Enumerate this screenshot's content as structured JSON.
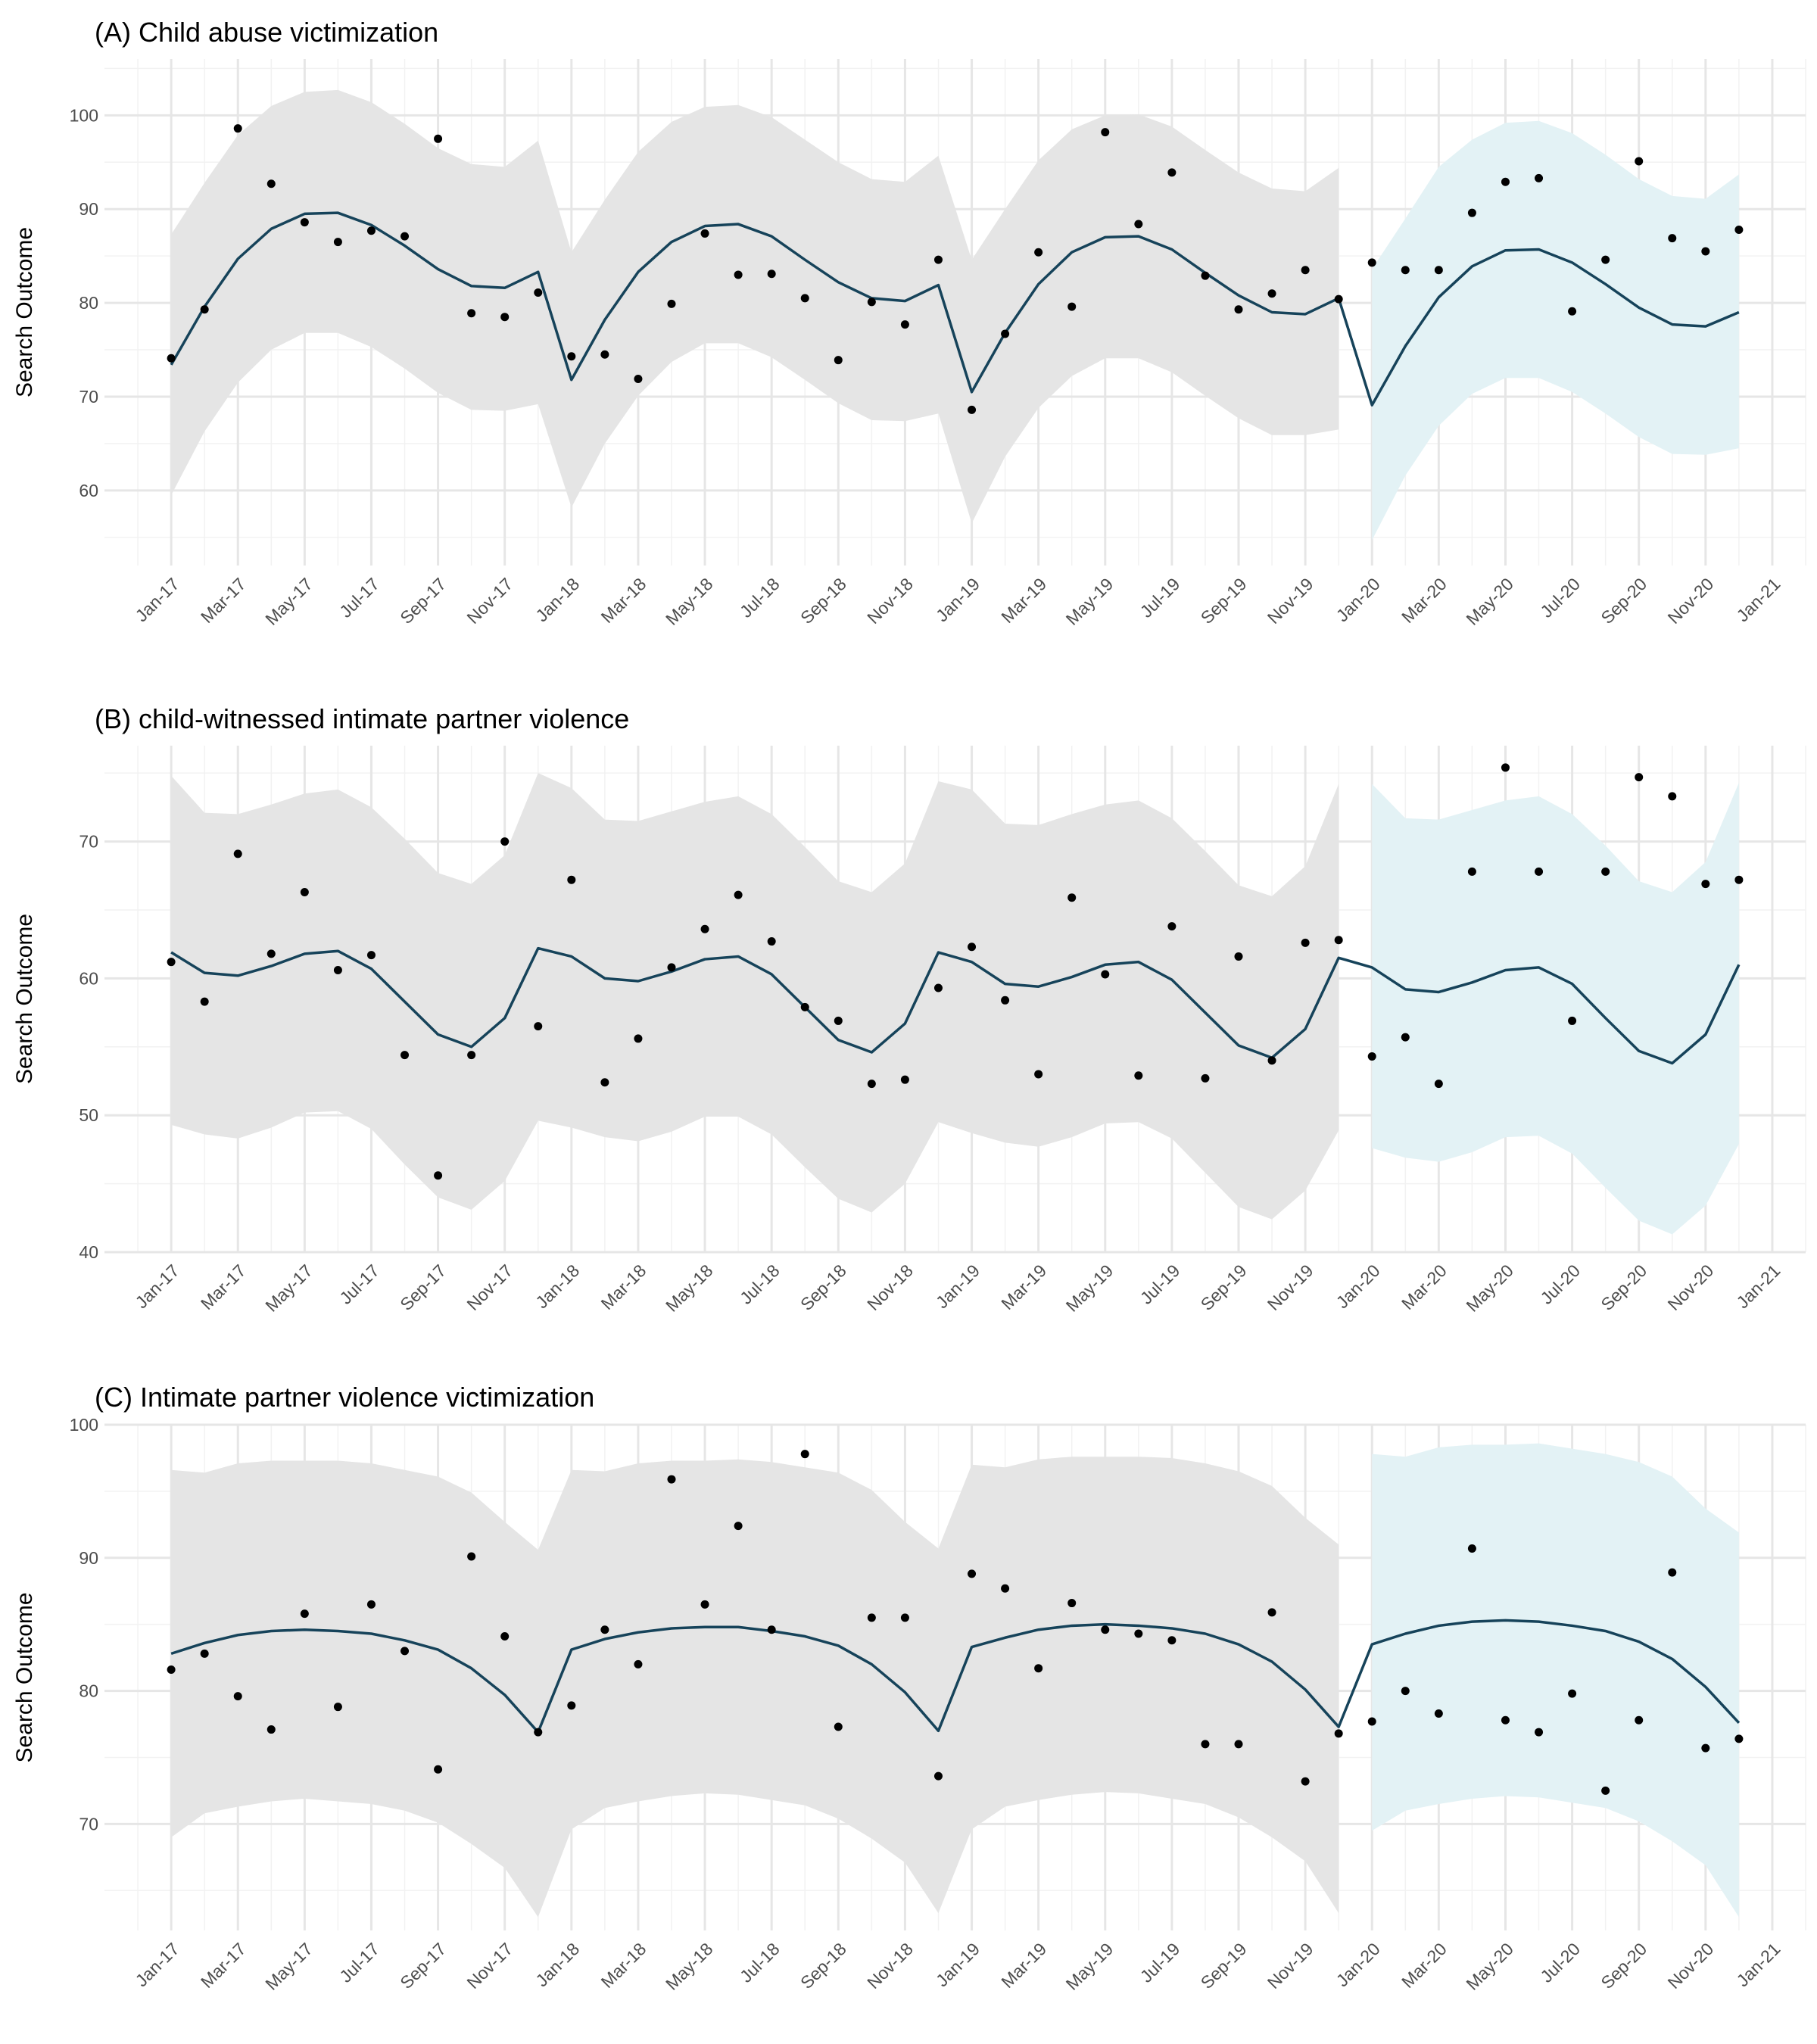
{
  "chart_data": [
    {
      "type": "line",
      "title": "(A) Child abuse victimization",
      "xlabel": "",
      "ylabel": "Search Outcome",
      "ylim": [
        52,
        106
      ],
      "yticks": [
        60,
        70,
        80,
        90,
        100
      ],
      "xlim": [
        "2016-11",
        "2021-02"
      ],
      "grid": true,
      "x": [
        "2017-01",
        "2017-02",
        "2017-03",
        "2017-04",
        "2017-05",
        "2017-06",
        "2017-07",
        "2017-08",
        "2017-09",
        "2017-10",
        "2017-11",
        "2017-12",
        "2018-01",
        "2018-02",
        "2018-03",
        "2018-04",
        "2018-05",
        "2018-06",
        "2018-07",
        "2018-08",
        "2018-09",
        "2018-10",
        "2018-11",
        "2018-12",
        "2019-01",
        "2019-02",
        "2019-03",
        "2019-04",
        "2019-05",
        "2019-06",
        "2019-07",
        "2019-08",
        "2019-09",
        "2019-10",
        "2019-11",
        "2019-12",
        "2020-01",
        "2020-02",
        "2020-03",
        "2020-04",
        "2020-05",
        "2020-06",
        "2020-07",
        "2020-08",
        "2020-09",
        "2020-10",
        "2020-11",
        "2020-12"
      ],
      "observed": [
        74.1,
        79.3,
        98.6,
        92.7,
        88.6,
        86.5,
        87.7,
        87.1,
        97.5,
        78.9,
        78.5,
        81.1,
        74.3,
        74.5,
        71.9,
        79.9,
        87.4,
        83.0,
        83.1,
        80.5,
        73.9,
        80.1,
        77.7,
        84.6,
        68.6,
        76.7,
        85.4,
        79.6,
        98.2,
        88.4,
        93.9,
        82.9,
        79.3,
        81.0,
        83.5,
        80.4,
        84.3,
        83.5,
        83.5,
        89.6,
        92.9,
        93.3,
        79.1,
        84.6,
        95.1,
        86.9,
        85.5,
        87.8
      ],
      "fitted": [
        73.4,
        79.6,
        84.7,
        87.9,
        89.5,
        89.6,
        88.3,
        86.1,
        83.6,
        81.8,
        81.6,
        83.3,
        71.8,
        78.2,
        83.3,
        86.5,
        88.2,
        88.4,
        87.1,
        84.6,
        82.2,
        80.5,
        80.2,
        81.9,
        70.5,
        76.8,
        82.0,
        85.4,
        87.0,
        87.1,
        85.7,
        83.2,
        80.8,
        79.0,
        78.8,
        80.5,
        69.1,
        75.4,
        80.6,
        83.9,
        85.6,
        85.7,
        84.3,
        82.0,
        79.5,
        77.7,
        77.5,
        79.0
      ],
      "lower": [
        59.5,
        66.3,
        71.5,
        75.0,
        76.8,
        76.8,
        75.3,
        73.0,
        70.4,
        68.6,
        68.5,
        69.2,
        58.2,
        65.0,
        70.1,
        73.7,
        75.7,
        75.7,
        74.2,
        71.8,
        69.3,
        67.5,
        67.4,
        68.2,
        56.5,
        63.6,
        68.8,
        72.2,
        74.1,
        74.1,
        72.6,
        70.1,
        67.7,
        65.9,
        65.9,
        66.5,
        54.7,
        61.6,
        66.9,
        70.3,
        72.0,
        72.0,
        70.5,
        68.2,
        65.7,
        63.9,
        63.8,
        64.5
      ],
      "upper": [
        87.3,
        92.8,
        97.9,
        101.0,
        102.5,
        102.7,
        101.4,
        99.1,
        96.5,
        94.8,
        94.5,
        97.3,
        85.4,
        91.0,
        96.1,
        99.3,
        100.9,
        101.1,
        99.8,
        97.4,
        95.0,
        93.2,
        92.9,
        95.7,
        84.6,
        90.0,
        95.2,
        98.5,
        100.0,
        100.1,
        98.8,
        96.3,
        93.9,
        92.2,
        91.9,
        94.4,
        83.6,
        89.0,
        94.5,
        97.4,
        99.2,
        99.4,
        98.1,
        95.8,
        93.2,
        91.4,
        91.1,
        93.7
      ],
      "series": [
        {
          "name": "",
          "role": "observed points",
          "color": "#000000"
        },
        {
          "name": "",
          "role": "fitted line",
          "color": "#16435a"
        },
        {
          "name": "",
          "role": "prediction band pre-2020",
          "color": "#e5e5e5"
        },
        {
          "name": "",
          "role": "prediction band 2020",
          "color": "#e3f2f5"
        }
      ]
    },
    {
      "type": "line",
      "title": "(B) child-witnessed intimate partner violence",
      "xlabel": "",
      "ylabel": "Search Outcome",
      "ylim": [
        40,
        77
      ],
      "yticks": [
        40,
        50,
        60,
        70
      ],
      "xlim": [
        "2016-11",
        "2021-02"
      ],
      "grid": true,
      "x": [
        "2017-01",
        "2017-02",
        "2017-03",
        "2017-04",
        "2017-05",
        "2017-06",
        "2017-07",
        "2017-08",
        "2017-09",
        "2017-10",
        "2017-11",
        "2017-12",
        "2018-01",
        "2018-02",
        "2018-03",
        "2018-04",
        "2018-05",
        "2018-06",
        "2018-07",
        "2018-08",
        "2018-09",
        "2018-10",
        "2018-11",
        "2018-12",
        "2019-01",
        "2019-02",
        "2019-03",
        "2019-04",
        "2019-05",
        "2019-06",
        "2019-07",
        "2019-08",
        "2019-09",
        "2019-10",
        "2019-11",
        "2019-12",
        "2020-01",
        "2020-02",
        "2020-03",
        "2020-04",
        "2020-05",
        "2020-06",
        "2020-07",
        "2020-08",
        "2020-09",
        "2020-10",
        "2020-11",
        "2020-12"
      ],
      "observed": [
        61.2,
        58.3,
        69.1,
        61.8,
        66.3,
        60.6,
        61.7,
        54.4,
        45.6,
        54.4,
        70.0,
        56.5,
        67.2,
        52.4,
        55.6,
        60.8,
        63.6,
        66.1,
        62.7,
        57.9,
        56.9,
        52.3,
        52.6,
        59.3,
        62.3,
        58.4,
        53.0,
        65.9,
        60.3,
        52.9,
        63.8,
        52.7,
        61.6,
        54.0,
        62.6,
        62.8,
        54.3,
        55.7,
        52.3,
        67.8,
        75.4,
        67.8,
        56.9,
        67.8,
        74.7,
        73.3,
        66.9,
        67.2
      ],
      "fitted": [
        61.9,
        60.4,
        60.2,
        60.9,
        61.8,
        62.0,
        60.7,
        58.3,
        55.9,
        55.0,
        57.1,
        62.2,
        61.6,
        60.0,
        59.8,
        60.5,
        61.4,
        61.6,
        60.3,
        57.9,
        55.5,
        54.6,
        56.7,
        61.9,
        61.2,
        59.6,
        59.4,
        60.1,
        61.0,
        61.2,
        59.9,
        57.5,
        55.1,
        54.2,
        56.3,
        61.5,
        60.8,
        59.2,
        59.0,
        59.7,
        60.6,
        60.8,
        59.6,
        57.1,
        54.7,
        53.8,
        55.9,
        61.0
      ],
      "lower": [
        49.3,
        48.6,
        48.3,
        49.1,
        50.2,
        50.3,
        49.0,
        46.4,
        44.0,
        43.1,
        45.2,
        49.6,
        49.1,
        48.4,
        48.1,
        48.8,
        49.9,
        49.9,
        48.6,
        46.2,
        43.9,
        42.9,
        45.0,
        49.5,
        48.7,
        48.0,
        47.7,
        48.4,
        49.4,
        49.5,
        48.3,
        45.8,
        43.3,
        42.4,
        44.5,
        48.9,
        47.6,
        46.9,
        46.6,
        47.3,
        48.4,
        48.5,
        47.2,
        44.7,
        42.3,
        41.3,
        43.4,
        47.9
      ],
      "upper": [
        74.8,
        72.1,
        72.0,
        72.7,
        73.5,
        73.8,
        72.5,
        70.2,
        67.7,
        66.9,
        69.0,
        75.0,
        73.9,
        71.6,
        71.5,
        72.2,
        72.9,
        73.3,
        72.0,
        69.6,
        67.1,
        66.3,
        68.4,
        74.4,
        73.8,
        71.3,
        71.2,
        72.0,
        72.7,
        73.0,
        71.7,
        69.3,
        66.8,
        66.0,
        68.2,
        74.2,
        74.2,
        71.7,
        71.6,
        72.3,
        73.0,
        73.3,
        72.0,
        69.7,
        67.1,
        66.3,
        68.5,
        74.3
      ],
      "series": [
        {
          "name": "",
          "role": "observed points",
          "color": "#000000"
        },
        {
          "name": "",
          "role": "fitted line",
          "color": "#16435a"
        },
        {
          "name": "",
          "role": "prediction band pre-2020",
          "color": "#e5e5e5"
        },
        {
          "name": "",
          "role": "prediction band 2020",
          "color": "#e3f2f5"
        }
      ]
    },
    {
      "type": "line",
      "title": "(C) Intimate partner violence victimization",
      "xlabel": "",
      "ylabel": "Search Outcome",
      "ylim": [
        62,
        100
      ],
      "yticks": [
        70,
        80,
        90,
        100
      ],
      "xlim": [
        "2016-11",
        "2021-02"
      ],
      "grid": true,
      "x": [
        "2017-01",
        "2017-02",
        "2017-03",
        "2017-04",
        "2017-05",
        "2017-06",
        "2017-07",
        "2017-08",
        "2017-09",
        "2017-10",
        "2017-11",
        "2017-12",
        "2018-01",
        "2018-02",
        "2018-03",
        "2018-04",
        "2018-05",
        "2018-06",
        "2018-07",
        "2018-08",
        "2018-09",
        "2018-10",
        "2018-11",
        "2018-12",
        "2019-01",
        "2019-02",
        "2019-03",
        "2019-04",
        "2019-05",
        "2019-06",
        "2019-07",
        "2019-08",
        "2019-09",
        "2019-10",
        "2019-11",
        "2019-12",
        "2020-01",
        "2020-02",
        "2020-03",
        "2020-04",
        "2020-05",
        "2020-06",
        "2020-07",
        "2020-08",
        "2020-09",
        "2020-10",
        "2020-11",
        "2020-12"
      ],
      "observed": [
        81.6,
        82.8,
        79.6,
        77.1,
        85.8,
        78.8,
        86.5,
        83.0,
        74.1,
        90.1,
        84.1,
        76.9,
        78.9,
        84.6,
        82.0,
        95.9,
        86.5,
        92.4,
        84.6,
        97.8,
        77.3,
        85.5,
        85.5,
        73.6,
        88.8,
        87.7,
        81.7,
        86.6,
        84.6,
        84.3,
        83.8,
        76.0,
        76.0,
        85.9,
        73.2,
        76.8,
        77.7,
        80.0,
        78.3,
        90.7,
        77.8,
        76.9,
        79.8,
        72.5,
        77.8,
        88.9,
        75.7,
        76.4
      ],
      "fitted": [
        82.8,
        83.6,
        84.2,
        84.5,
        84.6,
        84.5,
        84.3,
        83.8,
        83.1,
        81.7,
        79.7,
        76.9,
        83.1,
        83.9,
        84.4,
        84.7,
        84.8,
        84.8,
        84.5,
        84.1,
        83.4,
        82.0,
        79.9,
        77.0,
        83.3,
        84.0,
        84.6,
        84.9,
        85.0,
        84.9,
        84.7,
        84.3,
        83.5,
        82.2,
        80.1,
        77.3,
        83.5,
        84.3,
        84.9,
        85.2,
        85.3,
        85.2,
        84.9,
        84.5,
        83.7,
        82.4,
        80.3,
        77.6
      ],
      "lower": [
        69.0,
        70.8,
        71.3,
        71.7,
        71.9,
        71.7,
        71.5,
        71.0,
        70.1,
        68.5,
        66.7,
        63.0,
        69.6,
        71.2,
        71.7,
        72.1,
        72.3,
        72.2,
        71.8,
        71.4,
        70.4,
        68.9,
        67.1,
        63.3,
        69.6,
        71.3,
        71.8,
        72.2,
        72.4,
        72.3,
        71.9,
        71.5,
        70.5,
        69.0,
        67.2,
        63.3,
        69.5,
        71.0,
        71.5,
        71.9,
        72.1,
        72.0,
        71.6,
        71.2,
        70.2,
        68.7,
        66.9,
        63.0
      ],
      "upper": [
        96.6,
        96.4,
        97.1,
        97.3,
        97.3,
        97.3,
        97.1,
        96.6,
        96.1,
        94.9,
        92.7,
        90.6,
        96.6,
        96.5,
        97.1,
        97.3,
        97.3,
        97.4,
        97.2,
        96.8,
        96.4,
        95.1,
        92.7,
        90.7,
        97.0,
        96.8,
        97.4,
        97.6,
        97.6,
        97.6,
        97.5,
        97.1,
        96.5,
        95.4,
        93.0,
        91.0,
        97.8,
        97.6,
        98.3,
        98.5,
        98.5,
        98.6,
        98.2,
        97.8,
        97.2,
        96.1,
        93.7,
        91.9
      ],
      "series": [
        {
          "name": "",
          "role": "observed points",
          "color": "#000000"
        },
        {
          "name": "",
          "role": "fitted line",
          "color": "#16435a"
        },
        {
          "name": "",
          "role": "prediction band pre-2020",
          "color": "#e5e5e5"
        },
        {
          "name": "",
          "role": "prediction band 2020",
          "color": "#e3f2f5"
        }
      ]
    }
  ],
  "x_tick_labels": [
    "Jan-17",
    "Mar-17",
    "May-17",
    "Jul-17",
    "Sep-17",
    "Nov-17",
    "Jan-18",
    "Mar-18",
    "May-18",
    "Jul-18",
    "Sep-18",
    "Nov-18",
    "Jan-19",
    "Mar-19",
    "May-19",
    "Jul-19",
    "Sep-19",
    "Nov-19",
    "Jan-20",
    "Mar-20",
    "May-20",
    "Jul-20",
    "Sep-20",
    "Nov-20",
    "Jan-21"
  ],
  "x_tick_months": [
    "2017-01",
    "2017-03",
    "2017-05",
    "2017-07",
    "2017-09",
    "2017-11",
    "2018-01",
    "2018-03",
    "2018-05",
    "2018-07",
    "2018-09",
    "2018-11",
    "2019-01",
    "2019-03",
    "2019-05",
    "2019-07",
    "2019-09",
    "2019-11",
    "2020-01",
    "2020-03",
    "2020-05",
    "2020-07",
    "2020-09",
    "2020-11",
    "2021-01"
  ],
  "colors": {
    "band_pre": "#e5e5e5",
    "band_2020": "#e3f2f5",
    "fitted_line": "#16435a",
    "points": "#000000",
    "grid_major": "#e6e6e6",
    "grid_minor": "#f2f2f2"
  }
}
